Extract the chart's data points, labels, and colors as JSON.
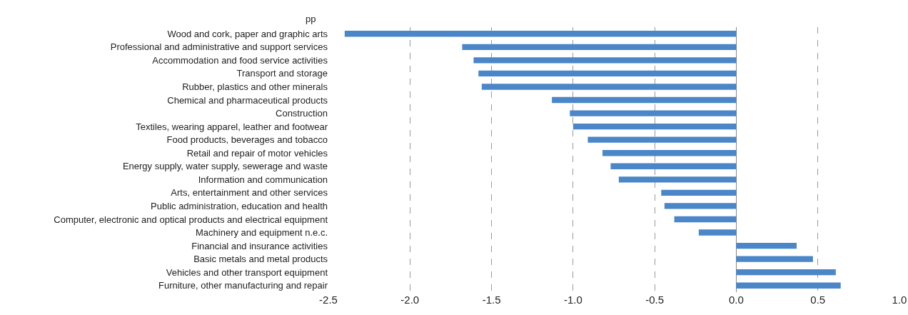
{
  "chart_data": {
    "type": "bar",
    "orientation": "horizontal",
    "categories": [
      "Wood and cork, paper and graphic arts",
      "Professional and administrative and support services",
      "Accommodation and food service activities",
      "Transport and storage",
      "Rubber, plastics and other minerals",
      "Chemical and pharmaceutical products",
      "Construction",
      "Textiles, wearing apparel, leather and footwear",
      "Food products, beverages and tobacco",
      "Retail and repair of motor vehicles",
      "Energy supply, water supply, sewerage and waste",
      "Information and communication",
      "Arts, entertainment and other services",
      "Public administration, education and health",
      "Computer, electronic and optical products and electrical equipment",
      "Machinery and equipment n.e.c.",
      "Financial and insurance activities",
      "Basic metals and metal products",
      "Vehicles and other transport equipment",
      "Furniture, other manufacturing and repair"
    ],
    "values": [
      -2.4,
      -1.68,
      -1.61,
      -1.58,
      -1.56,
      -1.13,
      -1.02,
      -1.0,
      -0.91,
      -0.82,
      -0.77,
      -0.72,
      -0.46,
      -0.44,
      -0.38,
      -0.23,
      0.37,
      0.47,
      0.61,
      0.64
    ],
    "color": "#4a86c8",
    "xlim": [
      -2.5,
      1.0
    ],
    "xticks": [
      {
        "value": -2.5,
        "label": "-2.5"
      },
      {
        "value": -2.0,
        "label": "-2.0"
      },
      {
        "value": -1.5,
        "label": "-1.5"
      },
      {
        "value": -1.0,
        "label": "-1.0"
      },
      {
        "value": -0.5,
        "label": "-0.5"
      },
      {
        "value": 0,
        "label": "0.0"
      },
      {
        "value": 0.5,
        "label": "0.5"
      },
      {
        "value": 1.0,
        "label": "1.0"
      }
    ],
    "grid": "x",
    "annotations": [
      "pp"
    ]
  }
}
